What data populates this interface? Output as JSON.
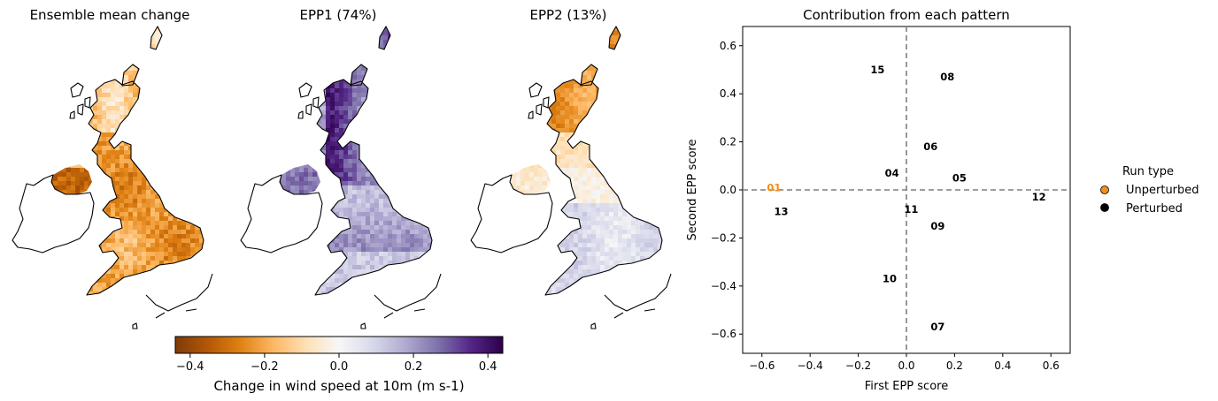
{
  "maps": [
    {
      "title": "Ensemble mean change",
      "pattern": "mean"
    },
    {
      "title": "EPP1 (74%)",
      "pattern": "epp1"
    },
    {
      "title": "EPP2 (13%)",
      "pattern": "epp2"
    }
  ],
  "colorbar": {
    "label": "Change in wind speed at 10m (m s-1)",
    "ticks": [
      "−0.4",
      "−0.2",
      "0.0",
      "0.2",
      "0.4"
    ],
    "tick_values": [
      -0.4,
      -0.2,
      0.0,
      0.2,
      0.4
    ],
    "range": [
      -0.44,
      0.44
    ],
    "colors": [
      "#7f3b08",
      "#b35806",
      "#e08214",
      "#fdb863",
      "#fee0b6",
      "#f7f7f7",
      "#d8daeb",
      "#b2abd2",
      "#8073ac",
      "#542788",
      "#2d004b"
    ]
  },
  "chart_data": {
    "type": "scatter",
    "title": "Contribution from each pattern",
    "xlabel": "First EPP score",
    "ylabel": "Second EPP score",
    "xlim": [
      -0.68,
      0.68
    ],
    "ylim": [
      -0.68,
      0.68
    ],
    "xticks": [
      -0.6,
      -0.4,
      -0.2,
      0.0,
      0.2,
      0.4,
      0.6
    ],
    "yticks": [
      -0.6,
      -0.4,
      -0.2,
      0.0,
      0.2,
      0.4,
      0.6
    ],
    "xtick_labels": [
      "−0.6",
      "−0.4",
      "−0.2",
      "0.0",
      "0.2",
      "0.4",
      "0.6"
    ],
    "ytick_labels": [
      "−0.6",
      "−0.4",
      "−0.2",
      "0.0",
      "0.2",
      "0.4",
      "0.6"
    ],
    "reference_lines": {
      "x": 0.0,
      "y": 0.0
    },
    "points": [
      {
        "label": "01",
        "x": -0.55,
        "y": 0.01,
        "type": "Unperturbed"
      },
      {
        "label": "04",
        "x": -0.06,
        "y": 0.07,
        "type": "Perturbed"
      },
      {
        "label": "05",
        "x": 0.22,
        "y": 0.05,
        "type": "Perturbed"
      },
      {
        "label": "06",
        "x": 0.1,
        "y": 0.18,
        "type": "Perturbed"
      },
      {
        "label": "07",
        "x": 0.13,
        "y": -0.57,
        "type": "Perturbed"
      },
      {
        "label": "08",
        "x": 0.17,
        "y": 0.47,
        "type": "Perturbed"
      },
      {
        "label": "09",
        "x": 0.13,
        "y": -0.15,
        "type": "Perturbed"
      },
      {
        "label": "10",
        "x": -0.07,
        "y": -0.37,
        "type": "Perturbed"
      },
      {
        "label": "11",
        "x": 0.02,
        "y": -0.08,
        "type": "Perturbed"
      },
      {
        "label": "12",
        "x": 0.55,
        "y": -0.03,
        "type": "Perturbed"
      },
      {
        "label": "13",
        "x": -0.52,
        "y": -0.09,
        "type": "Perturbed"
      },
      {
        "label": "15",
        "x": -0.12,
        "y": 0.5,
        "type": "Perturbed"
      }
    ],
    "legend": {
      "title": "Run type",
      "placement": "right, outside",
      "entries": [
        {
          "label": "Unperturbed",
          "color": "#f28e1c"
        },
        {
          "label": "Perturbed",
          "color": "#000000"
        }
      ]
    }
  }
}
